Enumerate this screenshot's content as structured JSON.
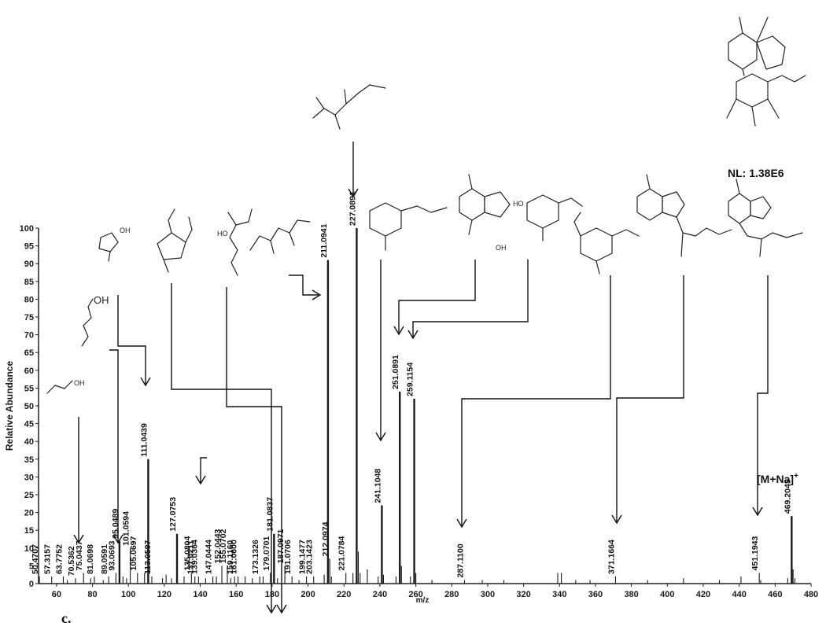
{
  "chart_data": {
    "type": "bar",
    "title": "",
    "xlabel": "m/z",
    "ylabel": "Relative Abundance",
    "xlim": [
      50,
      480
    ],
    "ylim": [
      0,
      100
    ],
    "xticks": [
      60,
      80,
      100,
      120,
      140,
      160,
      180,
      200,
      220,
      240,
      260,
      280,
      300,
      320,
      340,
      360,
      380,
      400,
      420,
      440,
      460,
      480
    ],
    "yticks": [
      0,
      5,
      10,
      15,
      20,
      25,
      30,
      35,
      40,
      45,
      50,
      55,
      60,
      65,
      70,
      75,
      80,
      85,
      90,
      95,
      100
    ],
    "normalization_level": "NL: 1.38E6",
    "molecular_ion_label": "[M+Na]",
    "molecular_ion_superscript": "+",
    "panel_label": "c.",
    "grid": false,
    "legend": "none",
    "labeled_peaks": [
      {
        "mz": 50.4707,
        "label": "50.4707",
        "intensity": 2
      },
      {
        "mz": 57.3157,
        "label": "57.3157",
        "intensity": 2
      },
      {
        "mz": 63.7752,
        "label": "63.7752",
        "intensity": 2
      },
      {
        "mz": 70.5362,
        "label": "70.5362",
        "intensity": 1.5
      },
      {
        "mz": 75.0437,
        "label": "75.0437",
        "intensity": 3
      },
      {
        "mz": 81.0698,
        "label": "81.0698",
        "intensity": 2
      },
      {
        "mz": 89.0591,
        "label": "89.0591",
        "intensity": 2
      },
      {
        "mz": 93.0693,
        "label": "93.0693",
        "intensity": 3
      },
      {
        "mz": 95.0489,
        "label": "95.0489",
        "intensity": 12
      },
      {
        "mz": 101.0594,
        "label": "101.0594",
        "intensity": 10
      },
      {
        "mz": 105.0697,
        "label": "105.0697",
        "intensity": 3
      },
      {
        "mz": 111.0439,
        "label": "111.0439",
        "intensity": 35
      },
      {
        "mz": 113.0597,
        "label": "113.0597",
        "intensity": 2
      },
      {
        "mz": 127.0753,
        "label": "127.0753",
        "intensity": 14
      },
      {
        "mz": 135.0804,
        "label": "135.0804",
        "intensity": 3
      },
      {
        "mz": 137.0211,
        "label": "137.0211",
        "intensity": 2
      },
      {
        "mz": 139.0364,
        "label": "139.0364",
        "intensity": 2
      },
      {
        "mz": 147.0444,
        "label": "147.0444",
        "intensity": 2
      },
      {
        "mz": 152.0443,
        "label": "152.0443",
        "intensity": 5
      },
      {
        "mz": 155.0702,
        "label": "155.0702",
        "intensity": 5
      },
      {
        "mz": 159.116,
        "label": "159.1160",
        "intensity": 2
      },
      {
        "mz": 161.06,
        "label": "161.0600",
        "intensity": 2
      },
      {
        "mz": 173.1326,
        "label": "173.1326",
        "intensity": 2
      },
      {
        "mz": 179.0701,
        "label": "179.0701",
        "intensity": 3
      },
      {
        "mz": 181.0837,
        "label": "181.0837",
        "intensity": 14
      },
      {
        "mz": 187.0971,
        "label": "187.0971",
        "intensity": 5
      },
      {
        "mz": 191.0706,
        "label": "191.0706",
        "intensity": 2
      },
      {
        "mz": 199.1477,
        "label": "199.1477",
        "intensity": 2
      },
      {
        "mz": 203.1423,
        "label": "203.1423",
        "intensity": 2
      },
      {
        "mz": 211.0941,
        "label": "211.0941",
        "intensity": 91
      },
      {
        "mz": 212.0974,
        "label": "212.0974",
        "intensity": 7
      },
      {
        "mz": 221.0784,
        "label": "221.0784",
        "intensity": 3
      },
      {
        "mz": 227.0891,
        "label": "227.0891",
        "intensity": 100
      },
      {
        "mz": 241.1048,
        "label": "241.1048",
        "intensity": 22
      },
      {
        "mz": 251.0891,
        "label": "251.0891",
        "intensity": 54
      },
      {
        "mz": 259.1154,
        "label": "259.1154",
        "intensity": 52
      },
      {
        "mz": 287.11,
        "label": "287.1100",
        "intensity": 1
      },
      {
        "mz": 371.1664,
        "label": "371.1664",
        "intensity": 2
      },
      {
        "mz": 451.1943,
        "label": "451.1943",
        "intensity": 3
      },
      {
        "mz": 469.2045,
        "label": "469.2045",
        "intensity": 19
      }
    ],
    "minor_peaks": [
      {
        "mz": 66,
        "intensity": 1
      },
      {
        "mz": 79,
        "intensity": 1.5
      },
      {
        "mz": 86,
        "intensity": 1
      },
      {
        "mz": 97,
        "intensity": 2
      },
      {
        "mz": 99,
        "intensity": 1.5
      },
      {
        "mz": 109,
        "intensity": 3
      },
      {
        "mz": 119,
        "intensity": 1.5
      },
      {
        "mz": 121,
        "intensity": 2.5
      },
      {
        "mz": 124,
        "intensity": 1.5
      },
      {
        "mz": 131,
        "intensity": 2
      },
      {
        "mz": 143,
        "intensity": 1.5
      },
      {
        "mz": 149,
        "intensity": 2
      },
      {
        "mz": 157,
        "intensity": 1.5
      },
      {
        "mz": 165,
        "intensity": 2
      },
      {
        "mz": 169,
        "intensity": 1.5
      },
      {
        "mz": 175,
        "intensity": 2
      },
      {
        "mz": 183,
        "intensity": 1.5
      },
      {
        "mz": 195,
        "intensity": 1
      },
      {
        "mz": 209,
        "intensity": 2.5
      },
      {
        "mz": 213,
        "intensity": 2
      },
      {
        "mz": 225,
        "intensity": 3
      },
      {
        "mz": 228,
        "intensity": 9
      },
      {
        "mz": 229,
        "intensity": 3
      },
      {
        "mz": 233,
        "intensity": 4
      },
      {
        "mz": 239,
        "intensity": 2
      },
      {
        "mz": 242,
        "intensity": 2.5
      },
      {
        "mz": 249,
        "intensity": 2
      },
      {
        "mz": 252,
        "intensity": 5
      },
      {
        "mz": 257,
        "intensity": 2
      },
      {
        "mz": 260,
        "intensity": 3
      },
      {
        "mz": 269,
        "intensity": 1
      },
      {
        "mz": 297,
        "intensity": 1
      },
      {
        "mz": 309,
        "intensity": 1
      },
      {
        "mz": 339,
        "intensity": 3
      },
      {
        "mz": 341,
        "intensity": 3
      },
      {
        "mz": 349,
        "intensity": 1
      },
      {
        "mz": 357,
        "intensity": 1
      },
      {
        "mz": 389,
        "intensity": 1
      },
      {
        "mz": 409,
        "intensity": 1.5
      },
      {
        "mz": 429,
        "intensity": 1
      },
      {
        "mz": 441,
        "intensity": 2
      },
      {
        "mz": 452,
        "intensity": 1
      },
      {
        "mz": 467,
        "intensity": 1.5
      },
      {
        "mz": 470,
        "intensity": 4
      },
      {
        "mz": 471,
        "intensity": 1.5
      }
    ],
    "structure_labels": {
      "hydroxyl": "OH",
      "hydroxyl_short": "HO"
    }
  }
}
